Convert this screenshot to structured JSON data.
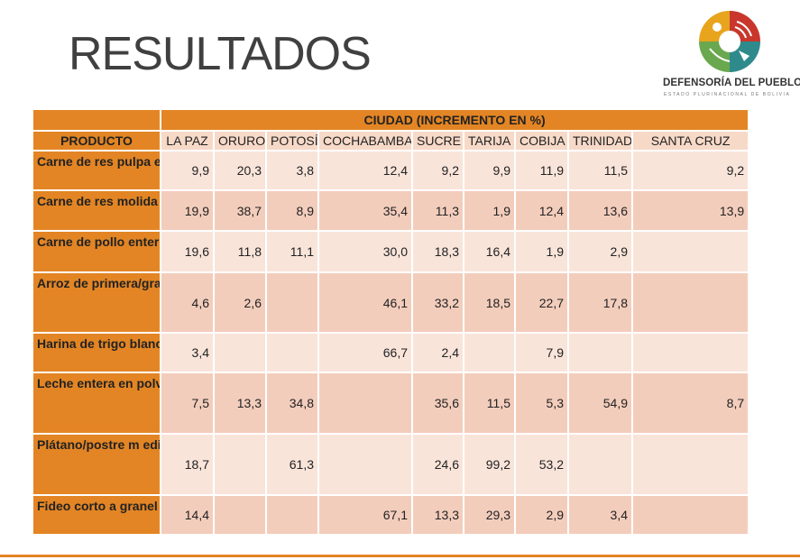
{
  "title": "RESULTADOS",
  "logo": {
    "name": "DEFENSORÍA DEL PUEBLO",
    "subtitle": "ESTADO PLURINACIONAL DE BOLIVIA",
    "colors": [
      "#e8a41d",
      "#c9372c",
      "#2f8a8c",
      "#6aa84f"
    ]
  },
  "table": {
    "group_header": "CIUDAD  (INCREMENTO EN %)",
    "product_header": "PRODUCTO",
    "columns": [
      "LA PAZ",
      "ORURO",
      "POTOSÍ",
      "COCHABAMBA",
      "SUCRE",
      "TARIJA",
      "COBIJA",
      "TRINIDAD",
      "SANTA CRUZ"
    ],
    "rows": [
      {
        "product": "Carne de res pulpa especial",
        "values": [
          "9,9",
          "20,3",
          "3,8",
          "12,4",
          "9,2",
          "9,9",
          "11,9",
          "11,5",
          "9,2"
        ]
      },
      {
        "product": "Carne de res molida corriente",
        "values": [
          "19,9",
          "38,7",
          "8,9",
          "35,4",
          "11,3",
          "1,9",
          "12,4",
          "13,6",
          "13,9"
        ]
      },
      {
        "product": "Carne de pollo entero",
        "values": [
          "19,6",
          "11,8",
          "11,1",
          "30,0",
          "18,3",
          "16,4",
          "1,9",
          "2,9",
          ""
        ]
      },
      {
        "product": "Arroz de primera/grano de oro",
        "values": [
          "4,6",
          "2,6",
          "",
          "46,1",
          "33,2",
          "18,5",
          "22,7",
          "17,8",
          ""
        ]
      },
      {
        "product": "Harina de trigo blanca a granel",
        "values": [
          "3,4",
          "",
          "",
          "66,7",
          "2,4",
          "",
          "7,9",
          "",
          ""
        ]
      },
      {
        "product": "Leche entera en polvo instantánea",
        "values": [
          "7,5",
          "13,3",
          "34,8",
          "",
          "35,6",
          "11,5",
          "5,3",
          "54,9",
          "8,7"
        ]
      },
      {
        "product": "Plátano/postre m ediano para cocinar",
        "values": [
          "18,7",
          "",
          "61,3",
          "",
          "24,6",
          "99,2",
          "53,2",
          "",
          ""
        ]
      },
      {
        "product": "Fideo corto a granel",
        "values": [
          "14,4",
          "",
          "",
          "67,1",
          "13,3",
          "29,3",
          "2,9",
          "3,4",
          ""
        ]
      }
    ]
  }
}
